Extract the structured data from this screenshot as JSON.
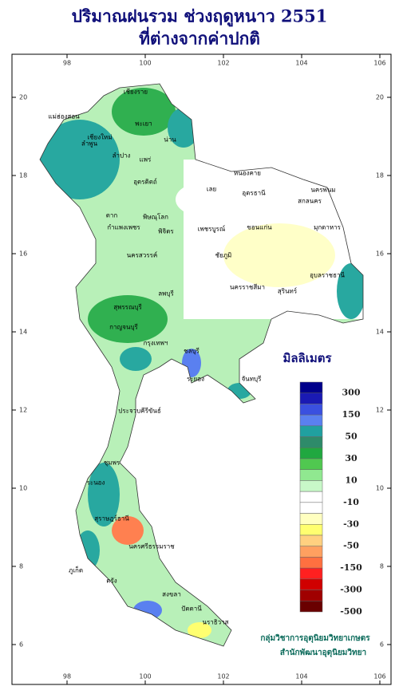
{
  "header": {
    "title": "ปริมาณฝนรวม ช่วงฤดูหนาว 2551",
    "subtitle": "ที่ต่างจากค่าปกติ"
  },
  "map": {
    "lon_ticks": [
      98,
      100,
      102,
      104,
      106
    ],
    "lat_ticks": [
      20,
      18,
      16,
      14,
      12,
      10,
      8,
      6
    ],
    "labels": [
      "เชียงราย",
      "แม่ฮ่องสอน",
      "เชียงใหม่",
      "ลำพูน",
      "พะเยา",
      "น่าน",
      "ลำปาง",
      "แพร่",
      "อุตรดิตถ์",
      "ตาก",
      "พิษณุโลก",
      "หนองคาย",
      "อุดรธานี",
      "สกลนคร",
      "นครพนม",
      "มุกดาหาร",
      "เลย",
      "ขอนแก่น",
      "กำแพงเพชร",
      "พิจิตร",
      "เพชรบูรณ์",
      "นครสวรรค์",
      "ชัยภูมิ",
      "อุบลราชธานี",
      "นครราชสีมา",
      "สุรินทร์",
      "ลพบุรี",
      "สุพรรณบุรี",
      "กาญจนบุรี",
      "กรุงเทพฯ",
      "ชลบุรี",
      "ระยอง",
      "จันทบุรี",
      "ประจวบคีรีขันธ์",
      "ชุมพร",
      "ระนอง",
      "สุราษฎร์ธานี",
      "นครศรีธรรมราช",
      "ภูเก็ต",
      "ตรัง",
      "สงขลา",
      "ปัตตานี",
      "นราธิวาส"
    ]
  },
  "legend": {
    "title": "มิลลิเมตร",
    "labels": [
      300,
      150,
      50,
      30,
      10,
      -10,
      -30,
      -50,
      -150,
      -300,
      -500
    ],
    "colors": [
      "#00008b",
      "#1a1ab4",
      "#3a50e0",
      "#5a80f0",
      "#20a0a0",
      "#2e8b6a",
      "#20a840",
      "#50c850",
      "#90e890",
      "#c8f8c8",
      "#ffffff",
      "#ffffff",
      "#ffffc0",
      "#ffff70",
      "#ffd080",
      "#ffa060",
      "#ff7040",
      "#ff2020",
      "#d00000",
      "#a00000",
      "#6a0000"
    ]
  },
  "footer": {
    "line1": "กลุ่มวิชาการอุตุนิยมวิทยาเกษตร",
    "line2": "สำนักพัฒนาอุตุนิยมวิทยา"
  }
}
